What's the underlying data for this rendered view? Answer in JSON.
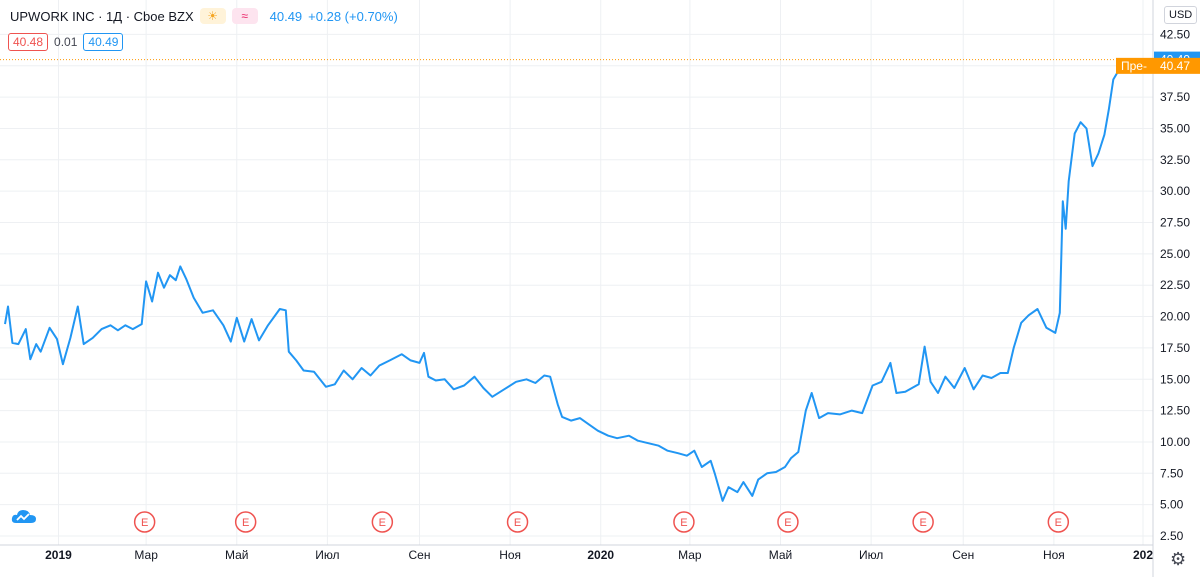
{
  "header": {
    "symbol": "UPWORK INC · 1Д · Cboe BZX",
    "price": "40.49",
    "change": "+0.28 (+0.70%)"
  },
  "quote": {
    "bid": "40.48",
    "spread": "0.01",
    "ask": "40.49"
  },
  "currency": "USD",
  "icons": {
    "session": "sun-icon",
    "indicator": "wave-icon",
    "settings": "gear-icon",
    "logo": "cloud-logo-icon"
  },
  "colors": {
    "line": "#2196f3",
    "grid": "#eef0f3",
    "last_label": "#2196f3",
    "pre_label": "#ff9800",
    "earnings": "#ef5350"
  },
  "chart_data": {
    "type": "line",
    "title": "UPWORK INC · 1Д · Cboe BZX",
    "ylabel": "USD",
    "ylim": [
      2.5,
      42.5
    ],
    "yticks": [
      2.5,
      5.0,
      7.5,
      10.0,
      12.5,
      15.0,
      17.5,
      20.0,
      22.5,
      25.0,
      27.5,
      30.0,
      32.5,
      35.0,
      37.5,
      40.0,
      42.5
    ],
    "x_domain": [
      "2018-11-26",
      "2020-12-31"
    ],
    "xtick_labels": [
      {
        "date": "2019-01-01",
        "label": "2019",
        "bold": true
      },
      {
        "date": "2019-03-01",
        "label": "Мар"
      },
      {
        "date": "2019-05-01",
        "label": "Май"
      },
      {
        "date": "2019-07-01",
        "label": "Июл"
      },
      {
        "date": "2019-09-01",
        "label": "Сен"
      },
      {
        "date": "2019-11-01",
        "label": "Ноя"
      },
      {
        "date": "2020-01-01",
        "label": "2020",
        "bold": true
      },
      {
        "date": "2020-03-01",
        "label": "Мар"
      },
      {
        "date": "2020-05-01",
        "label": "Май"
      },
      {
        "date": "2020-07-01",
        "label": "Июл"
      },
      {
        "date": "2020-09-01",
        "label": "Сен"
      },
      {
        "date": "2020-11-01",
        "label": "Ноя"
      },
      {
        "date": "2020-12-31",
        "label": "202",
        "bold": true
      }
    ],
    "earnings": [
      {
        "date": "2019-02-28",
        "label": "E"
      },
      {
        "date": "2019-05-07",
        "label": "E"
      },
      {
        "date": "2019-08-07",
        "label": "E"
      },
      {
        "date": "2019-11-06",
        "label": "E"
      },
      {
        "date": "2020-02-26",
        "label": "E"
      },
      {
        "date": "2020-05-06",
        "label": "E"
      },
      {
        "date": "2020-08-05",
        "label": "E"
      },
      {
        "date": "2020-11-04",
        "label": "E"
      }
    ],
    "series": [
      {
        "name": "UPWK close",
        "points": [
          [
            "2018-11-26",
            19.4
          ],
          [
            "2018-11-28",
            20.8
          ],
          [
            "2018-12-01",
            17.9
          ],
          [
            "2018-12-05",
            17.8
          ],
          [
            "2018-12-10",
            19.0
          ],
          [
            "2018-12-13",
            16.6
          ],
          [
            "2018-12-17",
            17.8
          ],
          [
            "2018-12-20",
            17.2
          ],
          [
            "2018-12-26",
            19.1
          ],
          [
            "2018-12-31",
            18.2
          ],
          [
            "2019-01-04",
            16.2
          ],
          [
            "2019-01-09",
            18.3
          ],
          [
            "2019-01-14",
            20.8
          ],
          [
            "2019-01-18",
            17.8
          ],
          [
            "2019-01-24",
            18.3
          ],
          [
            "2019-01-30",
            19.0
          ],
          [
            "2019-02-05",
            19.3
          ],
          [
            "2019-02-10",
            18.9
          ],
          [
            "2019-02-15",
            19.3
          ],
          [
            "2019-02-20",
            19.0
          ],
          [
            "2019-02-26",
            19.4
          ],
          [
            "2019-03-01",
            22.8
          ],
          [
            "2019-03-05",
            21.2
          ],
          [
            "2019-03-09",
            23.5
          ],
          [
            "2019-03-13",
            22.3
          ],
          [
            "2019-03-17",
            23.3
          ],
          [
            "2019-03-21",
            22.9
          ],
          [
            "2019-03-24",
            24.0
          ],
          [
            "2019-03-28",
            23.0
          ],
          [
            "2019-04-02",
            21.5
          ],
          [
            "2019-04-08",
            20.3
          ],
          [
            "2019-04-15",
            20.5
          ],
          [
            "2019-04-22",
            19.3
          ],
          [
            "2019-04-27",
            18.0
          ],
          [
            "2019-05-01",
            19.9
          ],
          [
            "2019-05-06",
            18.0
          ],
          [
            "2019-05-11",
            19.8
          ],
          [
            "2019-05-16",
            18.1
          ],
          [
            "2019-05-22",
            19.3
          ],
          [
            "2019-05-30",
            20.6
          ],
          [
            "2019-06-03",
            20.5
          ],
          [
            "2019-06-05",
            17.2
          ],
          [
            "2019-06-10",
            16.5
          ],
          [
            "2019-06-15",
            15.7
          ],
          [
            "2019-06-22",
            15.6
          ],
          [
            "2019-06-30",
            14.4
          ],
          [
            "2019-07-06",
            14.6
          ],
          [
            "2019-07-12",
            15.7
          ],
          [
            "2019-07-18",
            15.0
          ],
          [
            "2019-07-24",
            15.9
          ],
          [
            "2019-07-30",
            15.3
          ],
          [
            "2019-08-05",
            16.1
          ],
          [
            "2019-08-12",
            16.5
          ],
          [
            "2019-08-20",
            17.0
          ],
          [
            "2019-08-26",
            16.5
          ],
          [
            "2019-09-01",
            16.3
          ],
          [
            "2019-09-04",
            17.1
          ],
          [
            "2019-09-07",
            15.2
          ],
          [
            "2019-09-12",
            14.9
          ],
          [
            "2019-09-18",
            15.0
          ],
          [
            "2019-09-24",
            14.2
          ],
          [
            "2019-10-01",
            14.5
          ],
          [
            "2019-10-08",
            15.2
          ],
          [
            "2019-10-14",
            14.3
          ],
          [
            "2019-10-20",
            13.6
          ],
          [
            "2019-10-28",
            14.2
          ],
          [
            "2019-11-05",
            14.8
          ],
          [
            "2019-11-12",
            15.0
          ],
          [
            "2019-11-18",
            14.7
          ],
          [
            "2019-11-24",
            15.3
          ],
          [
            "2019-11-28",
            15.2
          ],
          [
            "2019-12-03",
            13.0
          ],
          [
            "2019-12-06",
            12.0
          ],
          [
            "2019-12-12",
            11.7
          ],
          [
            "2019-12-18",
            11.9
          ],
          [
            "2019-12-24",
            11.4
          ],
          [
            "2019-12-30",
            10.9
          ],
          [
            "2020-01-06",
            10.5
          ],
          [
            "2020-01-12",
            10.3
          ],
          [
            "2020-01-20",
            10.5
          ],
          [
            "2020-01-26",
            10.1
          ],
          [
            "2020-02-02",
            9.9
          ],
          [
            "2020-02-09",
            9.7
          ],
          [
            "2020-02-15",
            9.3
          ],
          [
            "2020-02-22",
            9.1
          ],
          [
            "2020-02-28",
            8.9
          ],
          [
            "2020-03-04",
            9.3
          ],
          [
            "2020-03-09",
            8.0
          ],
          [
            "2020-03-15",
            8.5
          ],
          [
            "2020-03-18",
            7.4
          ],
          [
            "2020-03-23",
            5.3
          ],
          [
            "2020-03-27",
            6.4
          ],
          [
            "2020-04-02",
            6.0
          ],
          [
            "2020-04-06",
            6.8
          ],
          [
            "2020-04-12",
            5.7
          ],
          [
            "2020-04-16",
            7.0
          ],
          [
            "2020-04-22",
            7.5
          ],
          [
            "2020-04-28",
            7.6
          ],
          [
            "2020-05-04",
            8.0
          ],
          [
            "2020-05-08",
            8.7
          ],
          [
            "2020-05-13",
            9.2
          ],
          [
            "2020-05-18",
            12.5
          ],
          [
            "2020-05-22",
            13.9
          ],
          [
            "2020-05-27",
            11.9
          ],
          [
            "2020-06-02",
            12.3
          ],
          [
            "2020-06-10",
            12.2
          ],
          [
            "2020-06-18",
            12.5
          ],
          [
            "2020-06-25",
            12.3
          ],
          [
            "2020-07-02",
            14.5
          ],
          [
            "2020-07-08",
            14.8
          ],
          [
            "2020-07-14",
            16.3
          ],
          [
            "2020-07-18",
            13.9
          ],
          [
            "2020-07-24",
            14.0
          ],
          [
            "2020-08-02",
            14.6
          ],
          [
            "2020-08-06",
            17.6
          ],
          [
            "2020-08-10",
            14.8
          ],
          [
            "2020-08-15",
            13.9
          ],
          [
            "2020-08-20",
            15.2
          ],
          [
            "2020-08-26",
            14.3
          ],
          [
            "2020-09-02",
            15.9
          ],
          [
            "2020-09-08",
            14.2
          ],
          [
            "2020-09-14",
            15.3
          ],
          [
            "2020-09-20",
            15.1
          ],
          [
            "2020-09-26",
            15.5
          ],
          [
            "2020-10-01",
            15.5
          ],
          [
            "2020-10-05",
            17.5
          ],
          [
            "2020-10-10",
            19.5
          ],
          [
            "2020-10-15",
            20.1
          ],
          [
            "2020-10-21",
            20.6
          ],
          [
            "2020-10-27",
            19.1
          ],
          [
            "2020-11-02",
            18.7
          ],
          [
            "2020-11-05",
            20.3
          ],
          [
            "2020-11-07",
            29.2
          ],
          [
            "2020-11-09",
            27.0
          ],
          [
            "2020-11-11",
            30.8
          ],
          [
            "2020-11-15",
            34.6
          ],
          [
            "2020-11-19",
            35.5
          ],
          [
            "2020-11-23",
            35.0
          ],
          [
            "2020-11-27",
            32.0
          ],
          [
            "2020-12-01",
            33.0
          ],
          [
            "2020-12-05",
            34.5
          ],
          [
            "2020-12-08",
            36.5
          ],
          [
            "2020-12-11",
            38.9
          ],
          [
            "2020-12-14",
            39.5
          ],
          [
            "2020-12-16",
            40.49
          ]
        ]
      }
    ],
    "last_label": "40.49",
    "pre_label": {
      "prefix": "Пре-",
      "value": "40.47"
    }
  }
}
